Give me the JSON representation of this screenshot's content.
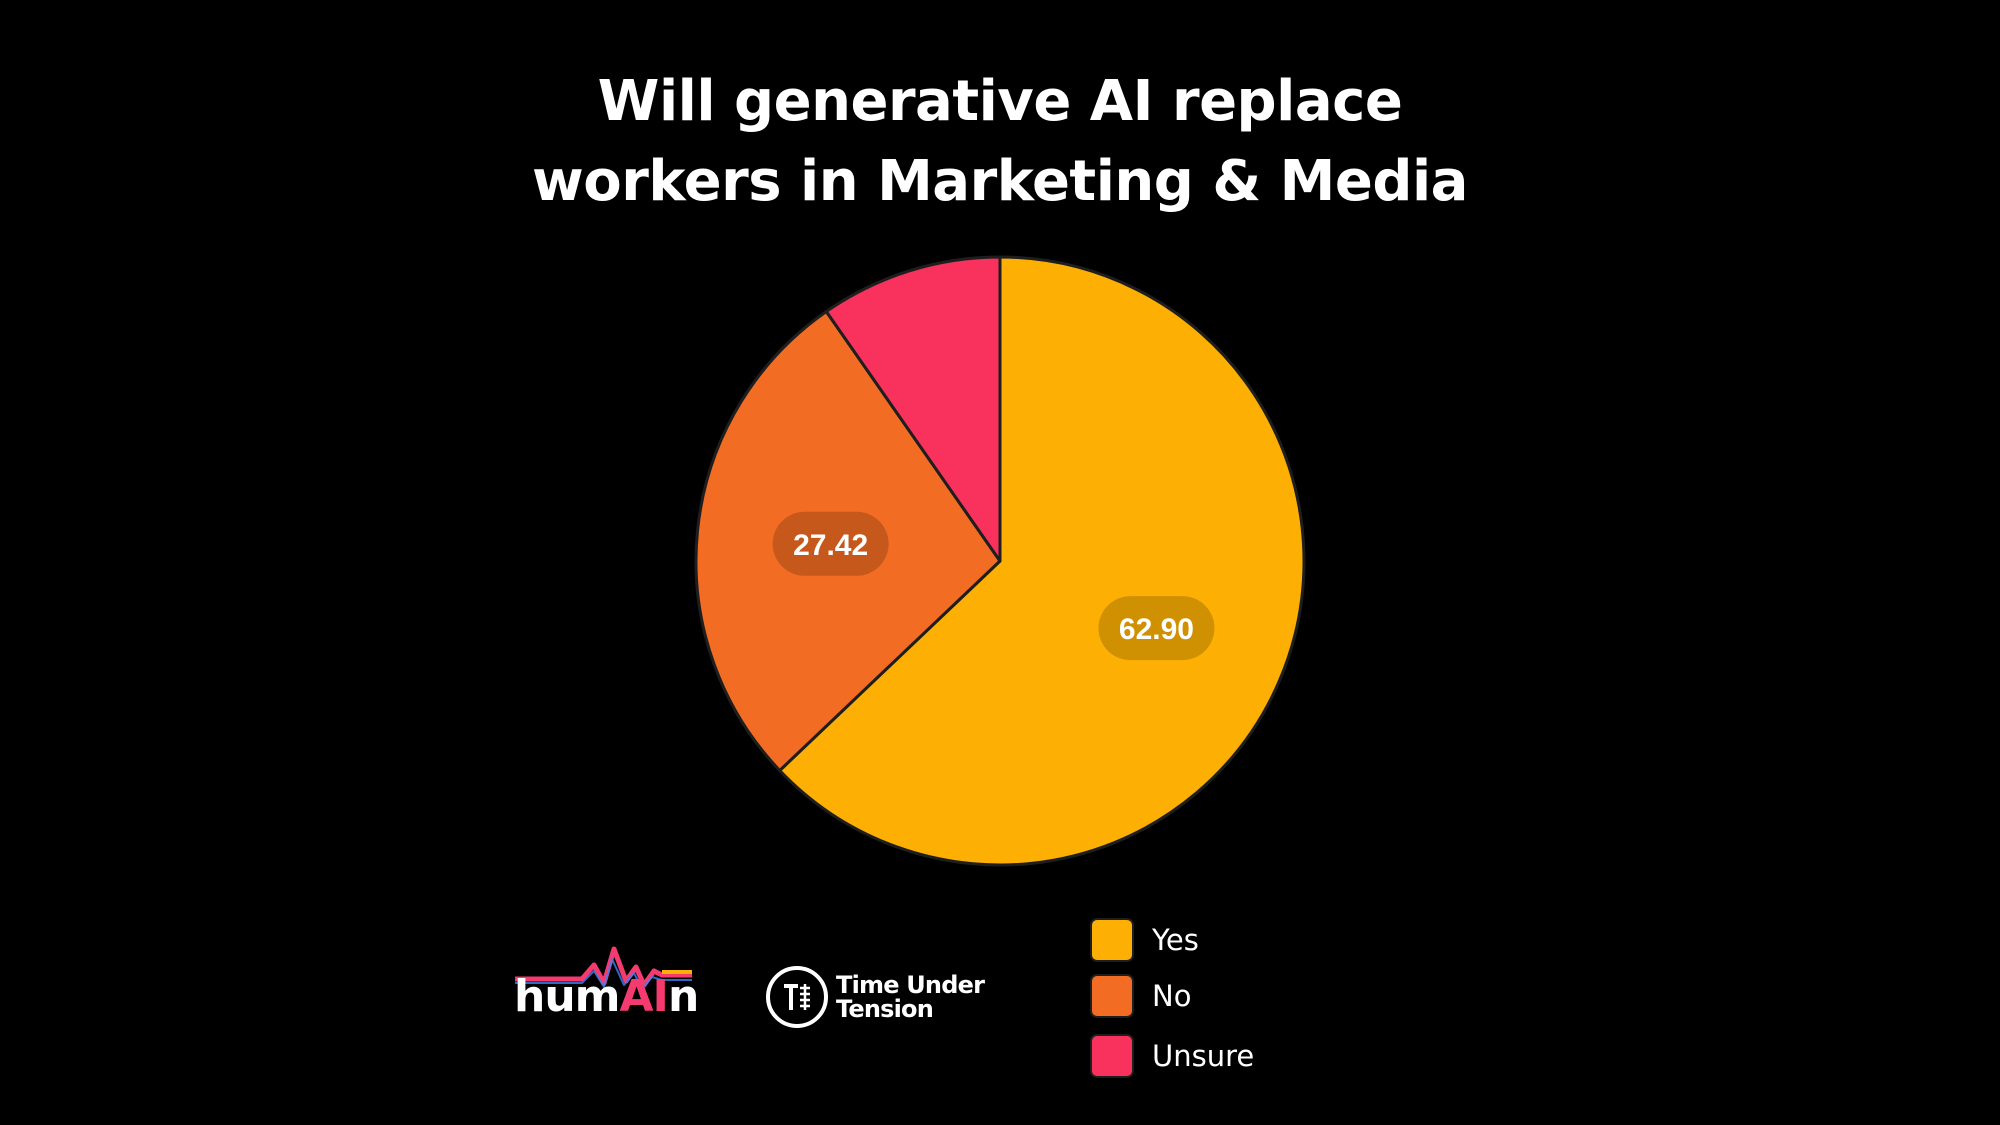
{
  "chart_data": {
    "type": "pie",
    "title_lines": [
      "Will generative AI replace",
      "workers in Marketing & Media"
    ],
    "slices": [
      {
        "name": "Yes",
        "value": 62.9,
        "label": "62.90",
        "color": "#fdb003"
      },
      {
        "name": "No",
        "value": 27.42,
        "label": "27.42",
        "color": "#f26c23"
      },
      {
        "name": "Unsure",
        "value": 9.68,
        "label": "",
        "color": "#f8325c"
      }
    ],
    "start_angle": "12 o'clock, clockwise",
    "legend_position": "bottom-right",
    "label_bg_opacity": 0.18
  },
  "logos": {
    "humain": {
      "prefix": "hum",
      "highlight": "AI",
      "suffix": "n"
    },
    "tut": {
      "line1": "Time Under",
      "line2": "Tension"
    }
  },
  "colors": {
    "background": "#000000",
    "slice_border": "#1e1e1e"
  }
}
